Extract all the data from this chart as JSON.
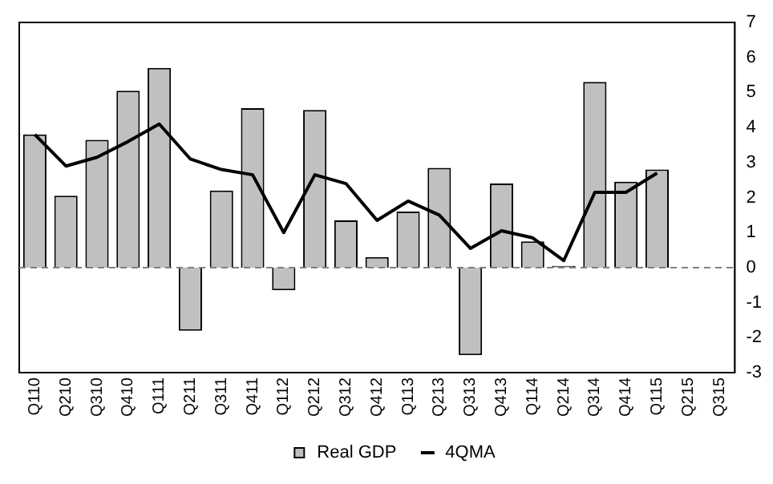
{
  "chart_data": {
    "type": "bar",
    "categories": [
      "Q110",
      "Q210",
      "Q310",
      "Q410",
      "Q111",
      "Q211",
      "Q311",
      "Q411",
      "Q112",
      "Q212",
      "Q312",
      "Q412",
      "Q113",
      "Q213",
      "Q313",
      "Q413",
      "Q114",
      "Q214",
      "Q314",
      "Q414",
      "Q115",
      "Q215",
      "Q315"
    ],
    "series": [
      {
        "name": "Real GDP",
        "color": "#c0c0c0",
        "values": [
          3.8,
          2.05,
          3.65,
          5.05,
          5.7,
          -1.8,
          2.2,
          4.55,
          -0.65,
          4.5,
          1.35,
          0.3,
          1.6,
          2.85,
          -2.5,
          2.4,
          0.75,
          0.05,
          5.3,
          2.45,
          2.8,
          null,
          null
        ]
      },
      {
        "name": "4QMA",
        "type": "line",
        "color": "#000000",
        "values": [
          3.8,
          2.9,
          3.15,
          3.6,
          4.1,
          3.1,
          2.8,
          2.65,
          1.0,
          2.65,
          2.4,
          1.35,
          1.9,
          1.5,
          0.55,
          1.05,
          0.85,
          0.2,
          2.15,
          2.15,
          2.7,
          null,
          null
        ]
      }
    ],
    "ylim": [
      -3,
      7
    ],
    "yticks": [
      -3,
      -2,
      -1,
      0,
      1,
      2,
      3,
      4,
      5,
      6,
      7
    ],
    "ref_lines": [
      {
        "axis": "y",
        "value": 0,
        "color": "#808080",
        "line_style": "dashed"
      }
    ],
    "grid": false,
    "legend": "bottom",
    "marker": "none"
  }
}
